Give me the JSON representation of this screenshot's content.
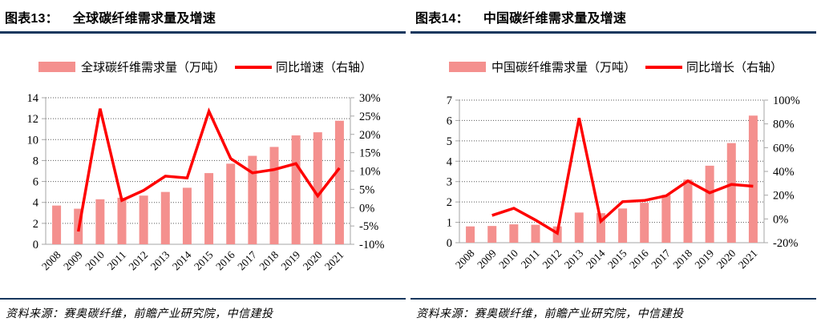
{
  "colors": {
    "bar": "#F4908E",
    "line": "#FE0000",
    "rule": "#17375E",
    "grid": "#595959",
    "axis": "#A6A6A6",
    "text": "#000000"
  },
  "panels": [
    {
      "figure_label": "图表13：",
      "title": "全球碳纤维需求量及增速",
      "legend": [
        {
          "type": "bar",
          "label": "全球碳纤维需求量（万吨）"
        },
        {
          "type": "line",
          "label": "同比增速（右轴）"
        }
      ],
      "source": "资料来源：赛奥碳纤维，前瞻产业研究院，中信建投"
    },
    {
      "figure_label": "图表14：",
      "title": "中国碳纤维需求量及增速",
      "legend": [
        {
          "type": "bar",
          "label": "中国碳纤维需求量（万吨）"
        },
        {
          "type": "line",
          "label": "同比增长（右轴）"
        }
      ],
      "source": "资料来源：赛奥碳纤维，前瞻产业研究院，中信建投"
    }
  ],
  "chart_data": [
    {
      "type": "combo-bar-line",
      "title": "全球碳纤维需求量及增速",
      "categories": [
        "2008",
        "2009",
        "2010",
        "2011",
        "2012",
        "2013",
        "2014",
        "2015",
        "2016",
        "2017",
        "2018",
        "2019",
        "2020",
        "2021"
      ],
      "series": [
        {
          "name": "全球碳纤维需求量（万吨）",
          "type": "bar",
          "axis": "left",
          "values": [
            3.7,
            3.4,
            4.3,
            4.45,
            4.65,
            5.0,
            5.4,
            6.8,
            7.7,
            8.45,
            9.3,
            10.4,
            10.7,
            11.8
          ]
        },
        {
          "name": "同比增速（右轴）",
          "type": "line",
          "axis": "right",
          "values": [
            null,
            -6.5,
            27,
            2,
            4.7,
            8.6,
            8.1,
            26.3,
            13.4,
            9.5,
            10.4,
            12,
            3.2,
            10.8
          ]
        }
      ],
      "left_axis": {
        "min": 0,
        "max": 14,
        "step": 2,
        "unit": ""
      },
      "right_axis": {
        "min": -10,
        "max": 30,
        "step": 5,
        "unit": "%"
      },
      "grid": true,
      "legend_position": "top"
    },
    {
      "type": "combo-bar-line",
      "title": "中国碳纤维需求量及增速",
      "categories": [
        "2008",
        "2009",
        "2010",
        "2011",
        "2012",
        "2013",
        "2014",
        "2015",
        "2016",
        "2017",
        "2018",
        "2019",
        "2020",
        "2021"
      ],
      "series": [
        {
          "name": "中国碳纤维需求量（万吨）",
          "type": "bar",
          "axis": "left",
          "values": [
            0.8,
            0.82,
            0.9,
            0.88,
            0.8,
            1.48,
            1.45,
            1.68,
            1.96,
            2.35,
            3.1,
            3.78,
            4.89,
            6.24
          ]
        },
        {
          "name": "同比增长（右轴）",
          "type": "line",
          "axis": "right",
          "values": [
            null,
            3,
            9,
            -1,
            -12,
            85,
            -2,
            14.5,
            15.5,
            19.5,
            32,
            22,
            29,
            27.5
          ]
        }
      ],
      "left_axis": {
        "min": 0,
        "max": 7,
        "step": 1,
        "unit": ""
      },
      "right_axis": {
        "min": -20,
        "max": 100,
        "step": 20,
        "unit": "%"
      },
      "grid": true,
      "legend_position": "top"
    }
  ]
}
